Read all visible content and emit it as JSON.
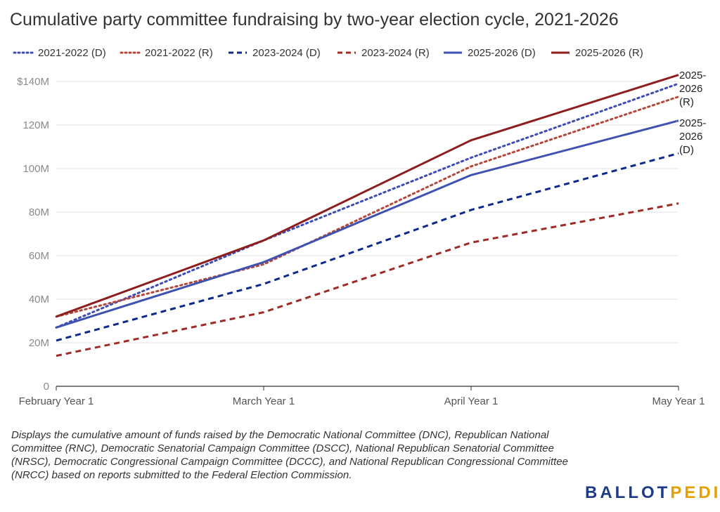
{
  "title": "Cumulative party committee fundraising by two-year election cycle, 2021-2026",
  "caption": "Displays the cumulative amount of funds raised by the Democratic National Committee (DNC), Republican National Committee (RNC), Democratic Senatorial Campaign Committee (DSCC), National Republican Senatorial Committee (NRSC), Democratic Congressional Campaign Committee (DCCC), and National Republican Congressional Committee (NRCC) based on reports submitted to the Federal Election Commission.",
  "brand": {
    "part1": "BALLOT",
    "part2": "PEDIA"
  },
  "chart_data": {
    "type": "line",
    "categories": [
      "February Year 1",
      "March Year 1",
      "April Year 1",
      "May Year 1"
    ],
    "ylim": [
      0,
      140
    ],
    "yticks": [
      0,
      20,
      40,
      60,
      80,
      100,
      120,
      140
    ],
    "ytick_labels": [
      "0",
      "20M",
      "40M",
      "60M",
      "80M",
      "100M",
      "120M",
      "$140M"
    ],
    "grid": true,
    "legend_position": "top",
    "series": [
      {
        "name": "2021-2022 (D)",
        "color": "#3d4db7",
        "dash": "dotted",
        "values": [
          27,
          67,
          105,
          139
        ]
      },
      {
        "name": "2021-2022 (R)",
        "color": "#b5473a",
        "dash": "dotted",
        "values": [
          32,
          56,
          101,
          133
        ]
      },
      {
        "name": "2023-2024 (D)",
        "color": "#0b2a8c",
        "dash": "dashed",
        "values": [
          21,
          47,
          81,
          107
        ]
      },
      {
        "name": "2023-2024 (R)",
        "color": "#9e2b24",
        "dash": "dashed",
        "values": [
          14,
          34,
          66,
          84
        ]
      },
      {
        "name": "2025-2026 (D)",
        "color": "#3e52b1",
        "dash": "solid",
        "values": [
          27,
          57,
          97,
          122
        ]
      },
      {
        "name": "2025-2026 (R)",
        "color": "#8e1e1e",
        "dash": "solid",
        "values": [
          32,
          67,
          113,
          143
        ]
      }
    ],
    "end_labels": [
      {
        "series": "2025-2026 (R)",
        "lines": [
          "2025-",
          "2026",
          "(R)"
        ]
      },
      {
        "series": "2025-2026 (D)",
        "lines": [
          "2025-",
          "2026",
          "(D)"
        ]
      }
    ]
  }
}
